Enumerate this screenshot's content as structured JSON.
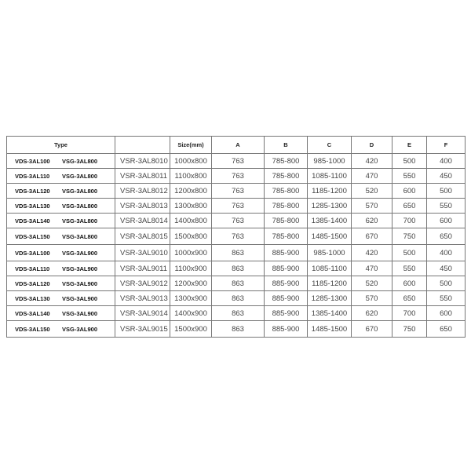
{
  "headers": {
    "type": "Type",
    "model": "",
    "size": "Size(mm)",
    "A": "A",
    "B": "B",
    "C": "C",
    "D": "D",
    "E": "E",
    "F": "F"
  },
  "rows": [
    {
      "type1": "VDS-3AL100",
      "type2": "VSG-3AL800",
      "model": "VSR-3AL8010",
      "size": "1000x800",
      "A": "763",
      "B": "785-800",
      "C": "985-1000",
      "D": "420",
      "E": "500",
      "F": "400"
    },
    {
      "type1": "VDS-3AL110",
      "type2": "VSG-3AL800",
      "model": "VSR-3AL8011",
      "size": "1100x800",
      "A": "763",
      "B": "785-800",
      "C": "1085-1100",
      "D": "470",
      "E": "550",
      "F": "450"
    },
    {
      "type1": "VDS-3AL120",
      "type2": "VSG-3AL800",
      "model": "VSR-3AL8012",
      "size": "1200x800",
      "A": "763",
      "B": "785-800",
      "C": "1185-1200",
      "D": "520",
      "E": "600",
      "F": "500"
    },
    {
      "type1": "VDS-3AL130",
      "type2": "VSG-3AL800",
      "model": "VSR-3AL8013",
      "size": "1300x800",
      "A": "763",
      "B": "785-800",
      "C": "1285-1300",
      "D": "570",
      "E": "650",
      "F": "550"
    },
    {
      "type1": "VDS-3AL140",
      "type2": "VSG-3AL800",
      "model": "VSR-3AL8014",
      "size": "1400x800",
      "A": "763",
      "B": "785-800",
      "C": "1385-1400",
      "D": "620",
      "E": "700",
      "F": "600"
    },
    {
      "type1": "VDS-3AL150",
      "type2": "VSG-3AL800",
      "model": "VSR-3AL8015",
      "size": "1500x800",
      "A": "763",
      "B": "785-800",
      "C": "1485-1500",
      "D": "670",
      "E": "750",
      "F": "650"
    },
    {
      "type1": "VDS-3AL100",
      "type2": "VSG-3AL900",
      "model": "VSR-3AL9010",
      "size": "1000x900",
      "A": "863",
      "B": "885-900",
      "C": "985-1000",
      "D": "420",
      "E": "500",
      "F": "400"
    },
    {
      "type1": "VDS-3AL110",
      "type2": "VSG-3AL900",
      "model": "VSR-3AL9011",
      "size": "1100x900",
      "A": "863",
      "B": "885-900",
      "C": "1085-1100",
      "D": "470",
      "E": "550",
      "F": "450"
    },
    {
      "type1": "VDS-3AL120",
      "type2": "VSG-3AL900",
      "model": "VSR-3AL9012",
      "size": "1200x900",
      "A": "863",
      "B": "885-900",
      "C": "1185-1200",
      "D": "520",
      "E": "600",
      "F": "500"
    },
    {
      "type1": "VDS-3AL130",
      "type2": "VSG-3AL900",
      "model": "VSR-3AL9013",
      "size": "1300x900",
      "A": "863",
      "B": "885-900",
      "C": "1285-1300",
      "D": "570",
      "E": "650",
      "F": "550"
    },
    {
      "type1": "VDS-3AL140",
      "type2": "VSG-3AL900",
      "model": "VSR-3AL9014",
      "size": "1400x900",
      "A": "863",
      "B": "885-900",
      "C": "1385-1400",
      "D": "620",
      "E": "700",
      "F": "600"
    },
    {
      "type1": "VDS-3AL150",
      "type2": "VSG-3AL900",
      "model": "VSR-3AL9015",
      "size": "1500x900",
      "A": "863",
      "B": "885-900",
      "C": "1485-1500",
      "D": "670",
      "E": "750",
      "F": "650"
    }
  ]
}
